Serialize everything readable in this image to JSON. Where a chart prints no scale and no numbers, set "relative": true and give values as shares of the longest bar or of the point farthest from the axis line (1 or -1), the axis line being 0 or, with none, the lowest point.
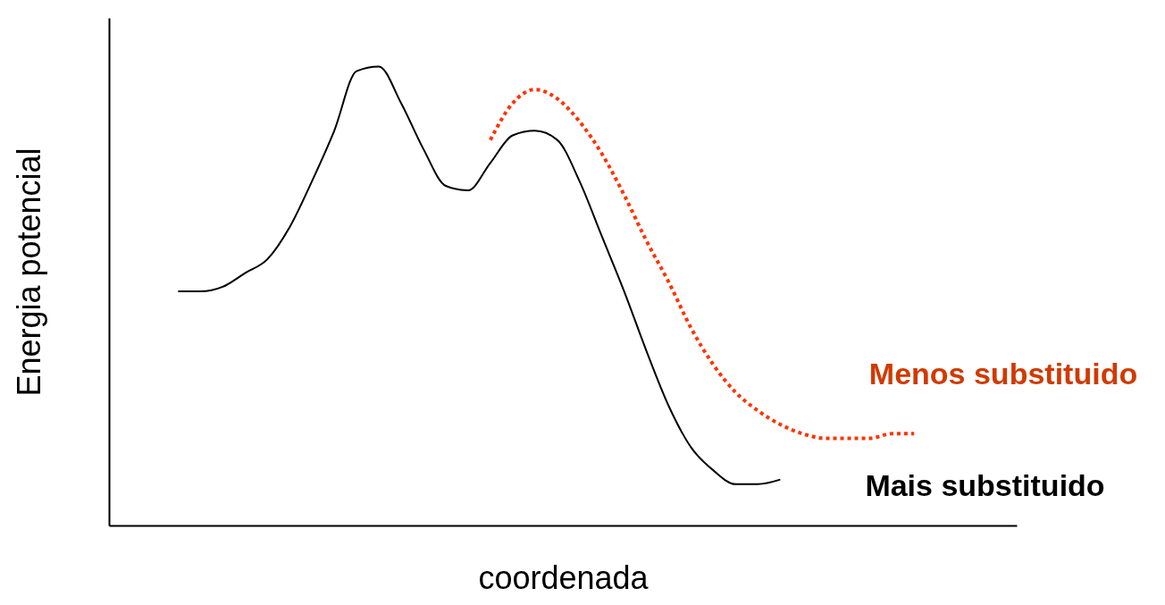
{
  "chart_data": {
    "type": "line",
    "relative": true,
    "xlabel": "coordenada",
    "ylabel": "Energia potencial",
    "legend": false,
    "grid": false,
    "categories": [
      null,
      null,
      null,
      null,
      null,
      null,
      null,
      null,
      null,
      null,
      null,
      null,
      null,
      null,
      null,
      null,
      null,
      null,
      null,
      null,
      null,
      null,
      null,
      null,
      null,
      null,
      null,
      null,
      null,
      null,
      null,
      null,
      null,
      null
    ],
    "series": [
      {
        "name": "Mais substituido",
        "color": "#000000",
        "line_style": "solid",
        "values": [
          0.51,
          0.51,
          0.52,
          0.55,
          0.58,
          0.65,
          0.75,
          0.86,
          0.99,
          1.0,
          0.92,
          0.82,
          0.74,
          0.73,
          0.79,
          0.85,
          0.86,
          0.84,
          0.75,
          0.63,
          0.51,
          0.38,
          0.26,
          0.17,
          0.12,
          0.09,
          0.09,
          0.1,
          null,
          null,
          null,
          null,
          null,
          null
        ]
      },
      {
        "name": "Menos substituido",
        "color": "#ff3300",
        "line_style": "dotted",
        "values": [
          null,
          null,
          null,
          null,
          null,
          null,
          null,
          null,
          null,
          null,
          null,
          null,
          null,
          null,
          0.84,
          0.92,
          0.95,
          0.93,
          0.88,
          0.81,
          0.72,
          0.62,
          0.53,
          0.43,
          0.35,
          0.29,
          0.25,
          0.22,
          0.2,
          0.19,
          0.19,
          0.19,
          0.2,
          0.2
        ]
      }
    ]
  }
}
